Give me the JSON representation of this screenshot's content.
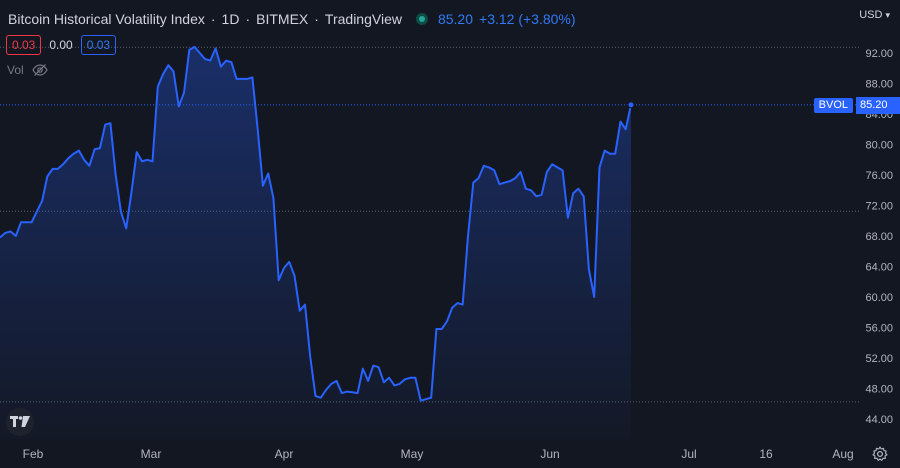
{
  "header": {
    "title": "Bitcoin Historical Volatility Index",
    "interval": "1D",
    "exchange": "BITMEX",
    "source": "TradingView",
    "last_price": "85.20",
    "change": "+3.12 (+3.80%)"
  },
  "ohlc": {
    "box_red": "0.03",
    "middle": "0.00",
    "box_blue": "0.03"
  },
  "volume_label": "Vol",
  "currency": "USD",
  "price_tag": {
    "symbol": "BVOL",
    "value": "85.20"
  },
  "colors": {
    "background": "#131722",
    "line": "#2962ff",
    "label_text": "#d1d4dc",
    "axis_text": "#b2b5be"
  },
  "icons": {
    "visibility": "eye-off-icon",
    "logo": "tradingview-logo-icon",
    "settings": "gear-icon",
    "currency_dropdown": "chevron-down-icon"
  },
  "chart_data": {
    "type": "area",
    "title": "Bitcoin Historical Volatility Index",
    "xlabel": "",
    "ylabel": "",
    "y_tick_labels": [
      "92.00",
      "88.00",
      "84.00",
      "80.00",
      "76.00",
      "72.00",
      "68.00",
      "64.00",
      "60.00",
      "56.00",
      "52.00",
      "48.00",
      "44.00"
    ],
    "x_tick_labels": [
      "Feb",
      "Mar",
      "Apr",
      "May",
      "Jun",
      "Jul",
      "16",
      "Aug"
    ],
    "ylim": [
      42.5,
      94.5
    ],
    "grid": false,
    "dotted_levels": [
      92.75,
      71.25,
      46.25
    ],
    "last_value": 85.2,
    "series": [
      {
        "values": [
          67.8,
          68.4,
          68.6,
          68.0,
          69.8,
          69.8,
          69.8,
          71.2,
          72.6,
          75.8,
          76.8,
          76.8,
          77.4,
          78.2,
          78.8,
          79.2,
          78.0,
          77.2,
          79.4,
          79.5,
          82.6,
          82.8,
          76.0,
          71.2,
          69.0,
          73.8,
          79.0,
          77.8,
          78.0,
          77.8,
          87.6,
          89.2,
          90.4,
          89.6,
          85.0,
          86.8,
          92.4,
          92.8,
          92.0,
          91.2,
          91.0,
          92.6,
          90.2,
          91.0,
          90.8,
          88.6,
          88.6,
          88.6,
          88.8,
          82.0,
          74.6,
          76.2,
          73.0,
          62.2,
          63.8,
          64.6,
          62.8,
          58.2,
          59.0,
          52.2,
          47.0,
          46.8,
          47.8,
          48.6,
          49.0,
          47.4,
          47.6,
          47.5,
          47.4,
          50.6,
          49.0,
          51.0,
          50.8,
          48.8,
          49.4,
          48.4,
          48.6,
          49.2,
          49.4,
          49.4,
          46.4,
          46.6,
          46.8,
          55.8,
          55.8,
          56.8,
          58.6,
          59.2,
          59.0,
          68.0,
          75.0,
          75.6,
          77.2,
          77.0,
          76.6,
          74.8,
          75.0,
          75.2,
          75.6,
          76.4,
          74.2,
          74.0,
          73.2,
          73.4,
          76.4,
          77.4,
          77.0,
          76.6,
          70.4,
          73.6,
          74.2,
          73.2,
          63.6,
          60.0,
          77.0,
          79.2,
          78.8,
          78.8,
          83.0,
          82.0,
          85.2
        ]
      }
    ]
  }
}
